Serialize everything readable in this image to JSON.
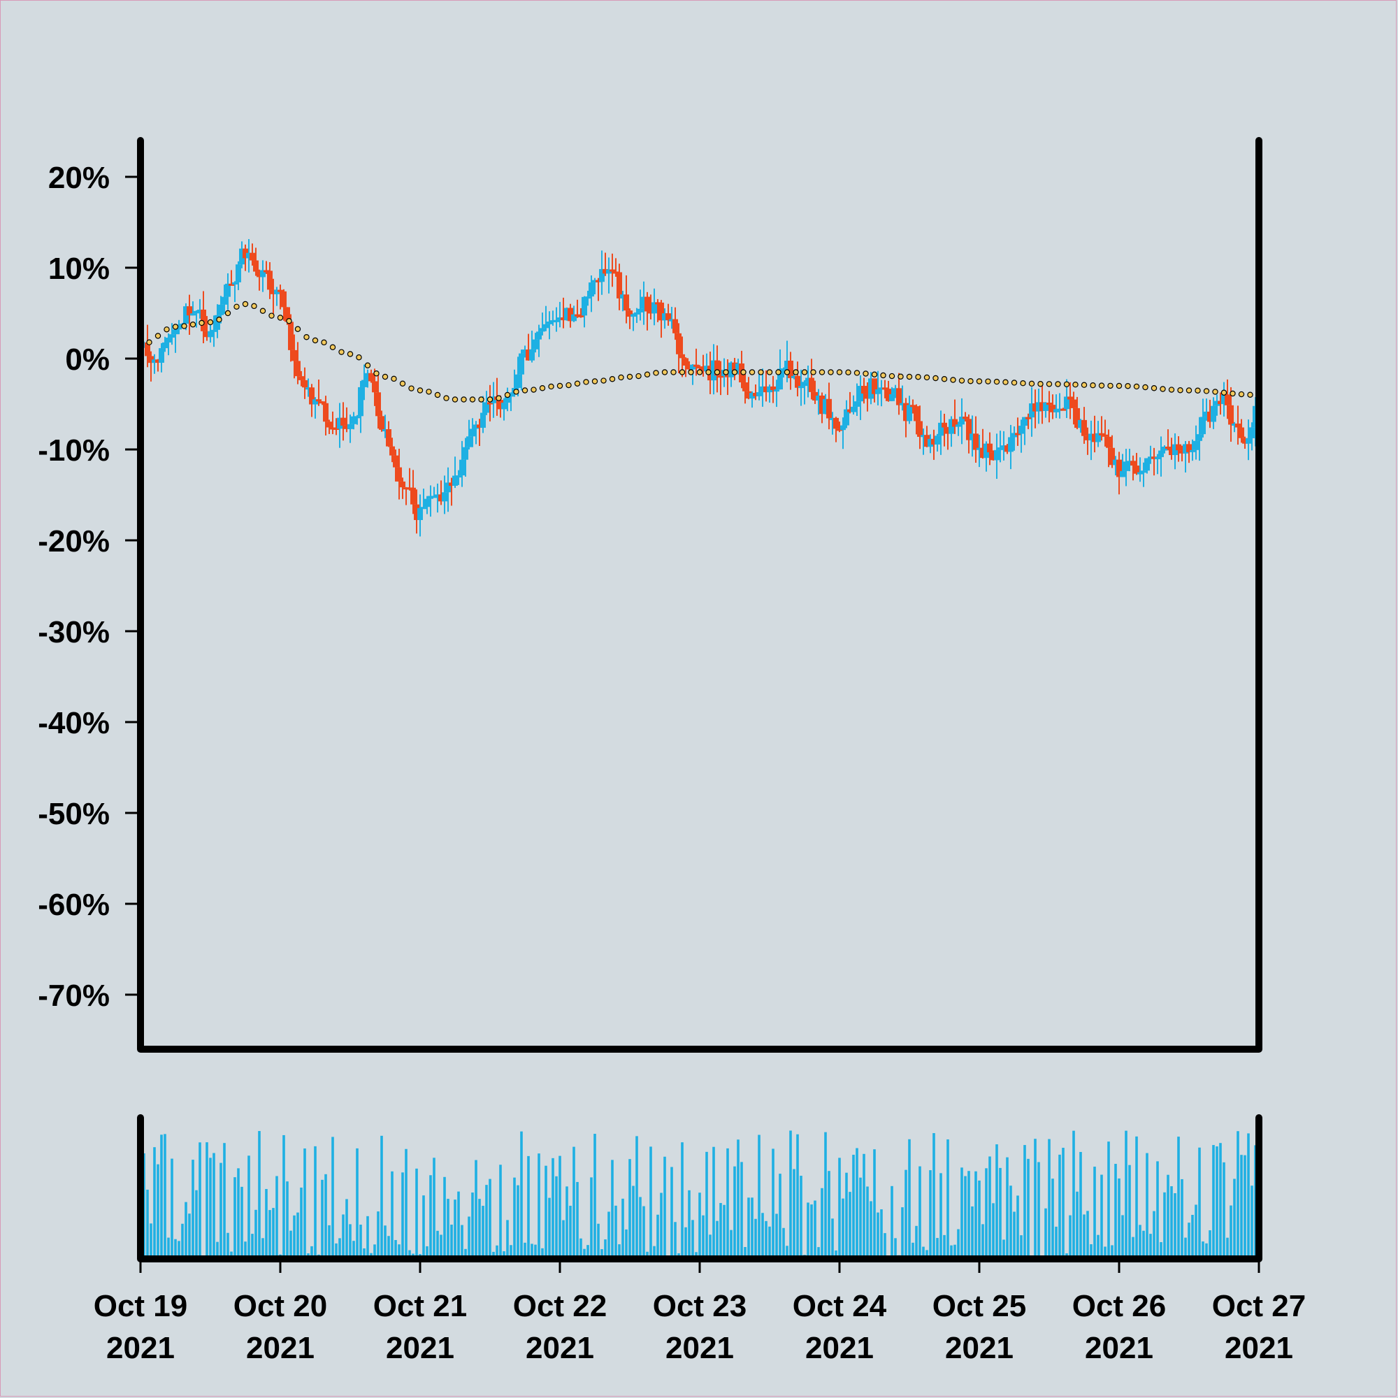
{
  "chart_data": {
    "type": "candlestick",
    "title": "",
    "xlabel": "",
    "ylabel": "",
    "y_axis": {
      "ticks": [
        "20%",
        "10%",
        "0%",
        "-10%",
        "-20%",
        "-30%",
        "-40%",
        "-50%",
        "-60%",
        "-70%"
      ],
      "tick_values": [
        20,
        10,
        0,
        -10,
        -20,
        -30,
        -40,
        -50,
        -60,
        -70
      ],
      "range": [
        -76,
        24
      ]
    },
    "x_axis": {
      "ticks": [
        {
          "line1": "Oct 19",
          "line2": "2021"
        },
        {
          "line1": "Oct 20",
          "line2": "2021"
        },
        {
          "line1": "Oct 21",
          "line2": "2021"
        },
        {
          "line1": "Oct 22",
          "line2": "2021"
        },
        {
          "line1": "Oct 23",
          "line2": "2021"
        },
        {
          "line1": "Oct 24",
          "line2": "2021"
        },
        {
          "line1": "Oct 25",
          "line2": "2021"
        },
        {
          "line1": "Oct 26",
          "line2": "2021"
        },
        {
          "line1": "Oct 27",
          "line2": "2021"
        }
      ],
      "range": [
        "2021-10-19",
        "2021-10-27"
      ]
    },
    "series": [
      {
        "name": "",
        "type": "candlestick",
        "close_keypoints": [
          [
            "2021-10-19T00:00",
            1
          ],
          [
            "2021-10-19T03:00",
            0
          ],
          [
            "2021-10-19T06:00",
            4
          ],
          [
            "2021-10-19T09:00",
            6
          ],
          [
            "2021-10-19T12:00",
            2
          ],
          [
            "2021-10-19T15:00",
            8
          ],
          [
            "2021-10-19T18:00",
            12
          ],
          [
            "2021-10-19T21:00",
            9
          ],
          [
            "2021-10-20T00:00",
            7
          ],
          [
            "2021-10-20T03:00",
            -2
          ],
          [
            "2021-10-20T06:00",
            -5
          ],
          [
            "2021-10-20T09:00",
            -7
          ],
          [
            "2021-10-20T12:00",
            -7
          ],
          [
            "2021-10-20T15:00",
            -2
          ],
          [
            "2021-10-20T18:00",
            -8
          ],
          [
            "2021-10-20T21:00",
            -14
          ],
          [
            "2021-10-21T00:00",
            -17
          ],
          [
            "2021-10-21T03:00",
            -15
          ],
          [
            "2021-10-21T06:00",
            -13
          ],
          [
            "2021-10-21T09:00",
            -8
          ],
          [
            "2021-10-21T12:00",
            -4
          ],
          [
            "2021-10-21T15:00",
            -5
          ],
          [
            "2021-10-21T18:00",
            0
          ],
          [
            "2021-10-21T21:00",
            4
          ],
          [
            "2021-10-22T00:00",
            5
          ],
          [
            "2021-10-22T03:00",
            5
          ],
          [
            "2021-10-22T06:00",
            9
          ],
          [
            "2021-10-22T09:00",
            9
          ],
          [
            "2021-10-22T12:00",
            5
          ],
          [
            "2021-10-22T15:00",
            6
          ],
          [
            "2021-10-22T18:00",
            5
          ],
          [
            "2021-10-22T21:00",
            0
          ],
          [
            "2021-10-23T00:00",
            -2
          ],
          [
            "2021-10-23T03:00",
            -1
          ],
          [
            "2021-10-23T06:00",
            -1
          ],
          [
            "2021-10-23T09:00",
            -4
          ],
          [
            "2021-10-23T12:00",
            -3
          ],
          [
            "2021-10-23T15:00",
            -1
          ],
          [
            "2021-10-23T18:00",
            -3
          ],
          [
            "2021-10-23T21:00",
            -5
          ],
          [
            "2021-10-24T00:00",
            -7
          ],
          [
            "2021-10-24T03:00",
            -4
          ],
          [
            "2021-10-24T06:00",
            -3
          ],
          [
            "2021-10-24T09:00",
            -4
          ],
          [
            "2021-10-24T12:00",
            -6
          ],
          [
            "2021-10-24T15:00",
            -9
          ],
          [
            "2021-10-24T18:00",
            -8
          ],
          [
            "2021-10-24T21:00",
            -7
          ],
          [
            "2021-10-25T00:00",
            -10
          ],
          [
            "2021-10-25T03:00",
            -11
          ],
          [
            "2021-10-25T06:00",
            -9
          ],
          [
            "2021-10-25T09:00",
            -6
          ],
          [
            "2021-10-25T12:00",
            -5
          ],
          [
            "2021-10-25T15:00",
            -5
          ],
          [
            "2021-10-25T18:00",
            -8
          ],
          [
            "2021-10-25T21:00",
            -9
          ],
          [
            "2021-10-26T00:00",
            -12
          ],
          [
            "2021-10-26T03:00",
            -12
          ],
          [
            "2021-10-26T06:00",
            -11
          ],
          [
            "2021-10-26T09:00",
            -10
          ],
          [
            "2021-10-26T12:00",
            -10
          ],
          [
            "2021-10-26T15:00",
            -6
          ],
          [
            "2021-10-26T18:00",
            -5
          ],
          [
            "2021-10-26T21:00",
            -9
          ],
          [
            "2021-10-27T00:00",
            -6
          ]
        ]
      },
      {
        "name": "",
        "type": "line",
        "style": "dotted-markers",
        "keypoints": [
          [
            "2021-10-19T00:00",
            1.5
          ],
          [
            "2021-10-19T06:00",
            3.5
          ],
          [
            "2021-10-19T12:00",
            4
          ],
          [
            "2021-10-19T18:00",
            6
          ],
          [
            "2021-10-20T00:00",
            4.5
          ],
          [
            "2021-10-20T06:00",
            2
          ],
          [
            "2021-10-20T12:00",
            0.5
          ],
          [
            "2021-10-20T18:00",
            -2
          ],
          [
            "2021-10-21T00:00",
            -3.5
          ],
          [
            "2021-10-21T06:00",
            -4.5
          ],
          [
            "2021-10-21T12:00",
            -4.5
          ],
          [
            "2021-10-21T18:00",
            -3.5
          ],
          [
            "2021-10-22T00:00",
            -3
          ],
          [
            "2021-10-22T06:00",
            -2.5
          ],
          [
            "2021-10-22T12:00",
            -2
          ],
          [
            "2021-10-22T18:00",
            -1.5
          ],
          [
            "2021-10-23T00:00",
            -1.5
          ],
          [
            "2021-10-23T12:00",
            -1.5
          ],
          [
            "2021-10-24T00:00",
            -1.5
          ],
          [
            "2021-10-24T12:00",
            -2
          ],
          [
            "2021-10-25T00:00",
            -2.5
          ],
          [
            "2021-10-25T12:00",
            -2.8
          ],
          [
            "2021-10-26T00:00",
            -3
          ],
          [
            "2021-10-26T12:00",
            -3.5
          ],
          [
            "2021-10-27T00:00",
            -4
          ]
        ]
      }
    ],
    "volume": {
      "type": "bar",
      "unlabeled": true
    },
    "grid": false,
    "legend": "none"
  },
  "colors": {
    "background": "#d3dbe0",
    "up": "#1eb0e3",
    "down": "#ee4a1e",
    "volume": "#1eb0e3",
    "average_fill": "#f2c95c",
    "average_stroke": "#000000",
    "axis": "#000000",
    "border": "#d89ab8"
  }
}
